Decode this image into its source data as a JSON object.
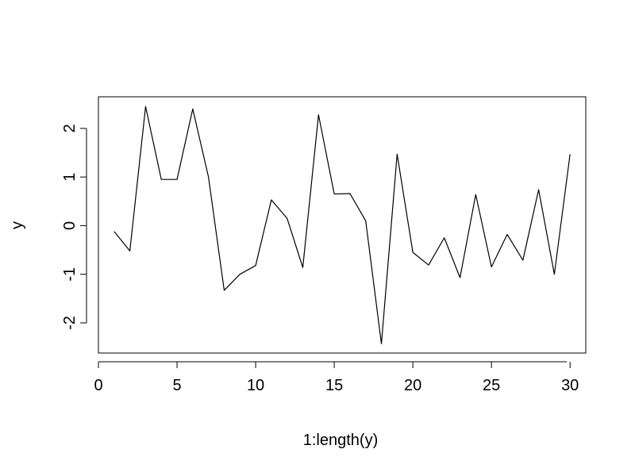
{
  "chart_data": {
    "type": "line",
    "xlabel": "1:length(y)",
    "ylabel": "y",
    "x": [
      1,
      2,
      3,
      4,
      5,
      6,
      7,
      8,
      9,
      10,
      11,
      12,
      13,
      14,
      15,
      16,
      17,
      18,
      19,
      20,
      21,
      22,
      23,
      24,
      25,
      26,
      27,
      28,
      29,
      30
    ],
    "series": [
      {
        "values": [
          -0.12,
          -0.52,
          2.45,
          0.95,
          0.95,
          2.4,
          1.0,
          -1.33,
          -1.0,
          -0.82,
          0.53,
          0.15,
          -0.86,
          2.28,
          0.65,
          0.66,
          0.1,
          -2.43,
          1.47,
          -0.55,
          -0.81,
          -0.25,
          -1.07,
          0.64,
          -0.85,
          -0.18,
          -0.71,
          0.74,
          -1.0,
          1.47
        ],
        "color": "#000000"
      }
    ],
    "xticks": [
      0,
      5,
      10,
      15,
      20,
      25,
      30
    ],
    "xtick_labels": [
      "0",
      "5",
      "10",
      "15",
      "20",
      "25",
      "30"
    ],
    "yticks": [
      -2,
      -1,
      0,
      1,
      2
    ],
    "ytick_labels": [
      "-2",
      "-1",
      "0",
      "1",
      "2"
    ],
    "xlim": [
      0,
      31
    ],
    "ylim": [
      -2.62,
      2.65
    ],
    "grid": false
  }
}
